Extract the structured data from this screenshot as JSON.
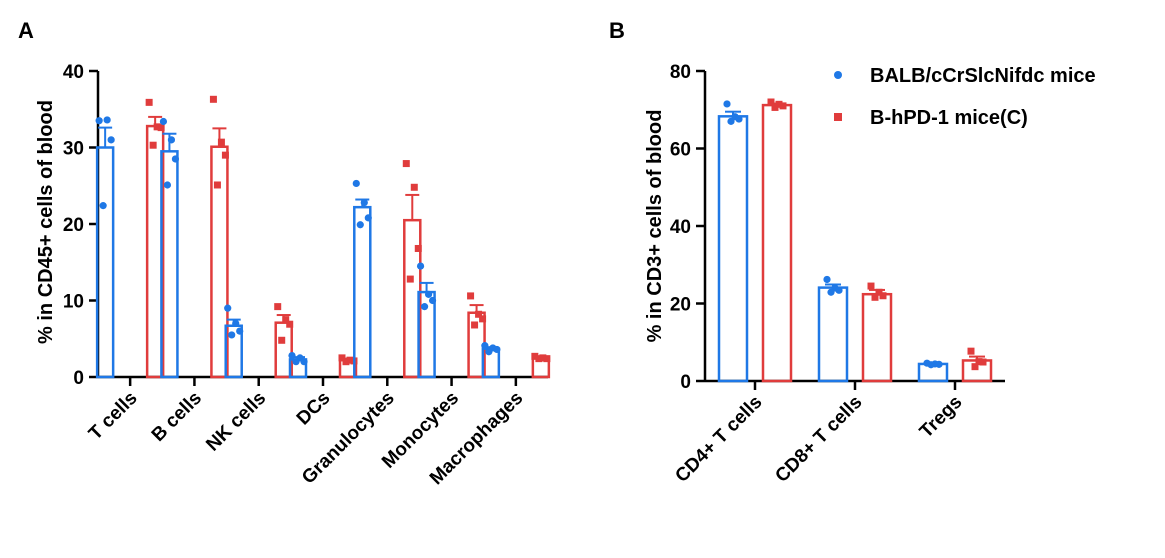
{
  "panels": {
    "a": {
      "letter": "A"
    },
    "b": {
      "letter": "B"
    }
  },
  "legend": {
    "items": [
      {
        "label": "BALB/cCrSlcNifdc mice",
        "color": "#1f78e6",
        "marker": "circle"
      },
      {
        "label": "B-hPD-1 mice(C)",
        "color": "#e03c3c",
        "marker": "square"
      }
    ]
  },
  "chart_data": [
    {
      "type": "bar",
      "panel": "A",
      "ylabel": "% in CD45+ cells of blood",
      "xlabel": "",
      "ylim": [
        0,
        40
      ],
      "yticks": [
        0,
        10,
        20,
        30,
        40
      ],
      "categories": [
        "T cells",
        "B cells",
        "NK cells",
        "DCs",
        "Granulocytes",
        "Monocytes",
        "Macrophages"
      ],
      "series": [
        {
          "name": "BALB/cCrSlcNifdc mice",
          "color": "#1f78e6",
          "values": [
            30.0,
            29.5,
            6.7,
            2.3,
            22.2,
            11.1,
            3.7
          ],
          "errors": [
            2.6,
            2.3,
            0.8,
            0.3,
            1.0,
            1.2,
            0.2
          ],
          "points": [
            [
              33.5,
              33.6,
              31.0,
              22.4
            ],
            [
              33.4,
              31.0,
              28.5,
              25.1
            ],
            [
              9.0,
              7.0,
              6.0,
              5.5
            ],
            [
              2.8,
              2.5,
              2.0,
              2.0
            ],
            [
              25.3,
              22.8,
              20.8,
              19.9
            ],
            [
              14.5,
              10.8,
              10.0,
              9.2
            ],
            [
              4.1,
              3.8,
              3.6,
              3.3
            ]
          ]
        },
        {
          "name": "B-hPD-1 mice(C)",
          "color": "#e03c3c",
          "values": [
            32.8,
            30.1,
            7.1,
            2.2,
            20.5,
            8.4,
            2.5
          ],
          "errors": [
            1.2,
            2.4,
            1.0,
            0.2,
            3.3,
            1.0,
            0.1
          ],
          "points": [
            [
              35.9,
              32.7,
              32.6,
              30.3
            ],
            [
              36.3,
              30.7,
              29.0,
              25.1
            ],
            [
              9.2,
              7.5,
              6.9,
              4.8
            ],
            [
              2.5,
              2.2,
              2.1,
              2.0
            ],
            [
              27.9,
              24.8,
              16.8,
              12.8
            ],
            [
              10.6,
              8.2,
              7.6,
              6.8
            ],
            [
              2.7,
              2.5,
              2.4,
              2.4
            ]
          ]
        }
      ]
    },
    {
      "type": "bar",
      "panel": "B",
      "ylabel": "% in CD3+ cells of blood",
      "xlabel": "",
      "ylim": [
        0,
        80
      ],
      "yticks": [
        0,
        20,
        40,
        60,
        80
      ],
      "categories": [
        "CD4+ T cells",
        "CD8+ T cells",
        "Tregs"
      ],
      "series": [
        {
          "name": "BALB/cCrSlcNifdc mice",
          "color": "#1f78e6",
          "values": [
            68.3,
            24.1,
            4.4
          ],
          "errors": [
            1.2,
            0.8,
            0.2
          ],
          "points": [
            [
              71.5,
              68.2,
              67.6,
              67.0
            ],
            [
              26.2,
              24.0,
              23.4,
              22.9
            ],
            [
              4.6,
              4.4,
              4.3,
              4.2
            ]
          ]
        },
        {
          "name": "B-hPD-1 mice(C)",
          "color": "#e03c3c",
          "values": [
            71.2,
            22.4,
            5.3
          ],
          "errors": [
            0.4,
            1.1,
            1.0
          ],
          "points": [
            [
              72.0,
              71.4,
              71.0,
              70.6
            ],
            [
              24.5,
              22.9,
              22.0,
              21.6
            ],
            [
              7.7,
              5.0,
              4.9,
              3.7
            ]
          ]
        }
      ]
    }
  ]
}
